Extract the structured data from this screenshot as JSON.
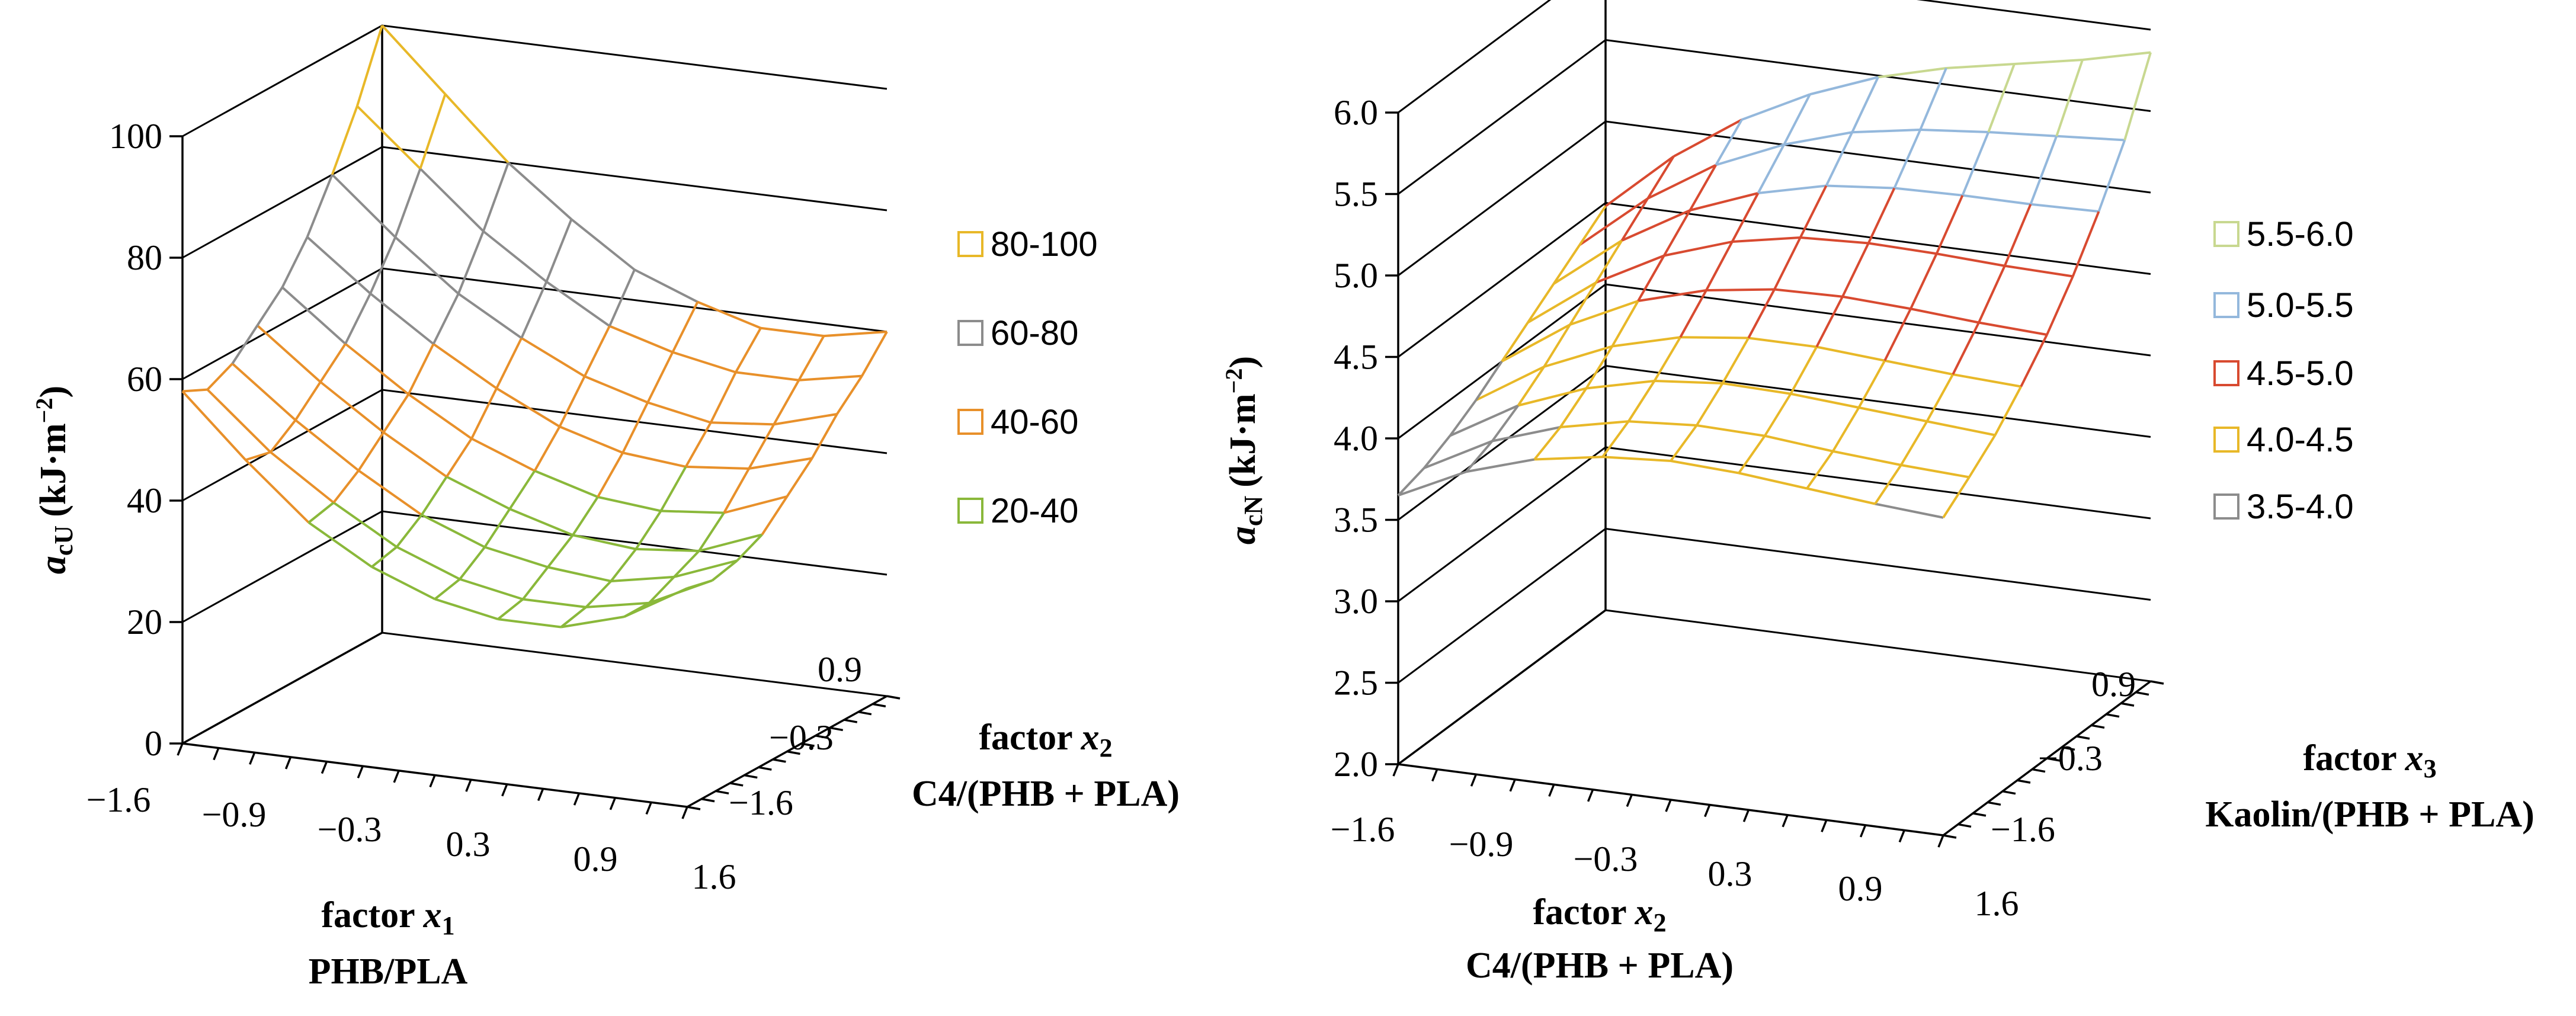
{
  "chart_data": [
    {
      "type": "surface3d",
      "title": "",
      "zlabel": {
        "symbol": "a",
        "subscript": "cU",
        "unit": "(kJ·m",
        "sup": "−2",
        "close": ")"
      },
      "xlabel": {
        "line1": "factor",
        "symbol": "x",
        "subscript": "1",
        "line2": "PHB/PLA"
      },
      "ylabel": {
        "line1": "factor",
        "symbol": "x",
        "subscript": "2",
        "line2": "C4/(PHB + PLA)"
      },
      "z_ticks": [
        "0",
        "20",
        "40",
        "60",
        "80",
        "100"
      ],
      "z_range": [
        0,
        100
      ],
      "x_ticks": [
        "−1.6",
        "−0.9",
        "−0.3",
        "0.3",
        "0.9",
        "1.6"
      ],
      "y_ticks": [
        "−1.6",
        "−0.3",
        "0.9"
      ],
      "x_range": [
        -1.6,
        1.6
      ],
      "y_range": [
        -1.6,
        1.6
      ],
      "legend": [
        {
          "label": "80-100",
          "color": "#e8b828",
          "min": 80,
          "max": 100
        },
        {
          "label": "60-80",
          "color": "#8c8c8c",
          "min": 60,
          "max": 80
        },
        {
          "label": "40-60",
          "color": "#e8902a",
          "min": 40,
          "max": 60
        },
        {
          "label": "20-40",
          "color": "#8ab83a",
          "min": 20,
          "max": 40
        }
      ],
      "surface_grid": {
        "x": [
          -1.6,
          -1.2,
          -0.8,
          -0.4,
          0.0,
          0.4,
          0.8,
          1.2,
          1.6
        ],
        "y": [
          -1.6,
          -1.2,
          -0.8,
          -0.4,
          0.0,
          0.4,
          0.8,
          1.2,
          1.6
        ],
        "z": [
          [
            58,
            48,
            39,
            33,
            29,
            27,
            27,
            30,
            36
          ],
          [
            56,
            47,
            40,
            34,
            30,
            28,
            28,
            30,
            35
          ],
          [
            58,
            50,
            43,
            37,
            33,
            31,
            30,
            32,
            36
          ],
          [
            62,
            54,
            47,
            41,
            37,
            34,
            33,
            34,
            38
          ],
          [
            66,
            58,
            51,
            45,
            41,
            38,
            37,
            38,
            42
          ],
          [
            72,
            64,
            57,
            51,
            46,
            43,
            42,
            43,
            46
          ],
          [
            80,
            71,
            63,
            57,
            52,
            49,
            47,
            48,
            51
          ],
          [
            89,
            80,
            71,
            64,
            58,
            55,
            53,
            53,
            55
          ],
          [
            100,
            90,
            80,
            72,
            65,
            61,
            58,
            58,
            60
          ]
        ]
      }
    },
    {
      "type": "surface3d",
      "title": "",
      "zlabel": {
        "symbol": "a",
        "subscript": "cN",
        "unit": "(kJ·m",
        "sup": "−2",
        "close": ")"
      },
      "xlabel": {
        "line1": "factor",
        "symbol": "x",
        "subscript": "2",
        "line2": "C4/(PHB + PLA)"
      },
      "ylabel": {
        "line1": "factor",
        "symbol": "x",
        "subscript": "3",
        "line2": "Kaolin/(PHB + PLA)"
      },
      "z_ticks": [
        "2.0",
        "2.5",
        "3.0",
        "3.5",
        "4.0",
        "4.5",
        "5.0",
        "5.5",
        "6.0"
      ],
      "z_range": [
        2.0,
        6.0
      ],
      "x_ticks": [
        "−1.6",
        "−0.9",
        "−0.3",
        "0.3",
        "0.9",
        "1.6"
      ],
      "y_ticks": [
        "−1.6",
        "−0.3",
        "0.9"
      ],
      "x_range": [
        -1.6,
        1.6
      ],
      "y_range": [
        -1.6,
        1.6
      ],
      "legend": [
        {
          "label": "5.5-6.0",
          "color": "#c8d890",
          "min": 5.5,
          "max": 6.0
        },
        {
          "label": "5.0-5.5",
          "color": "#94b8dc",
          "min": 5.0,
          "max": 5.5
        },
        {
          "label": "4.5-5.0",
          "color": "#d84a30",
          "min": 4.5,
          "max": 5.0
        },
        {
          "label": "4.0-4.5",
          "color": "#e8b828",
          "min": 4.0,
          "max": 4.5
        },
        {
          "label": "3.5-4.0",
          "color": "#8c8c8c",
          "min": 3.5,
          "max": 4.0
        }
      ],
      "surface_grid": {
        "x": [
          -1.6,
          -1.2,
          -0.8,
          -0.4,
          0.0,
          0.4,
          0.8,
          1.2,
          1.6
        ],
        "y": [
          -1.6,
          -1.2,
          -0.8,
          -0.4,
          0.0,
          0.4,
          0.8,
          1.2,
          1.6
        ],
        "z": [
          [
            3.65,
            3.85,
            3.98,
            4.05,
            4.08,
            4.06,
            4.02,
            3.98,
            3.95
          ],
          [
            3.7,
            3.92,
            4.06,
            4.15,
            4.18,
            4.17,
            4.13,
            4.1,
            4.08
          ],
          [
            3.78,
            4.02,
            4.18,
            4.28,
            4.32,
            4.31,
            4.28,
            4.25,
            4.22
          ],
          [
            3.88,
            4.14,
            4.32,
            4.43,
            4.48,
            4.48,
            4.45,
            4.42,
            4.4
          ],
          [
            4.0,
            4.28,
            4.48,
            4.6,
            4.66,
            4.67,
            4.65,
            4.62,
            4.6
          ],
          [
            4.12,
            4.42,
            4.64,
            4.78,
            4.86,
            4.88,
            4.87,
            4.85,
            4.84
          ],
          [
            4.24,
            4.56,
            4.8,
            4.96,
            5.06,
            5.1,
            5.11,
            5.11,
            5.12
          ],
          [
            4.36,
            4.7,
            4.96,
            5.14,
            5.27,
            5.34,
            5.38,
            5.41,
            5.44
          ],
          [
            4.48,
            4.84,
            5.12,
            5.33,
            5.49,
            5.6,
            5.68,
            5.76,
            5.86
          ]
        ]
      }
    }
  ]
}
